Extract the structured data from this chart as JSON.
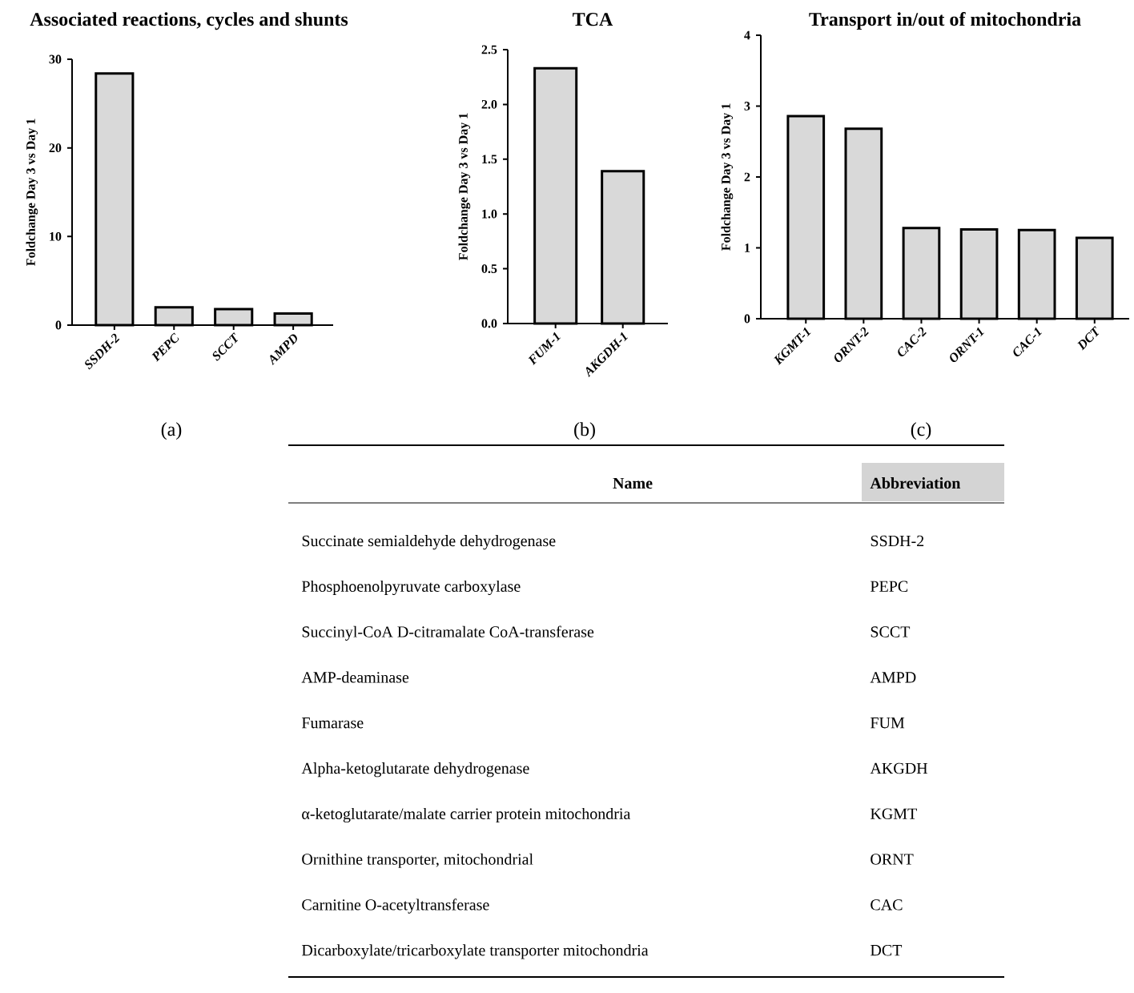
{
  "chart_data": [
    {
      "type": "bar",
      "title": "Associated reactions, cycles and shunts",
      "ylabel": "Foldchange Day 3 vs Day 1",
      "categories": [
        "SSDH-2",
        "PEPC",
        "SCCT",
        "AMPD"
      ],
      "values": [
        28.4,
        2.0,
        1.8,
        1.3
      ],
      "color": "#d9d9d9",
      "ylim": [
        0,
        30
      ],
      "yticks": [
        0,
        10,
        20,
        30
      ],
      "annotations": [
        "(a)"
      ]
    },
    {
      "type": "bar",
      "title": "TCA",
      "ylabel": "Foldchange Day 3 vs Day 1",
      "categories": [
        "FUM-1",
        "AKGDH-1"
      ],
      "values": [
        2.33,
        1.39
      ],
      "color": "#d9d9d9",
      "ylim": [
        0,
        2.5
      ],
      "yticks": [
        {
          "value": 0,
          "label": "0.0"
        },
        {
          "value": 0.5,
          "label": "0.5"
        },
        {
          "value": 1,
          "label": "1.0"
        },
        {
          "value": 1.5,
          "label": "1.5"
        },
        {
          "value": 2,
          "label": "2.0"
        },
        {
          "value": 2.5,
          "label": "2.5"
        }
      ],
      "annotations": [
        "(b)"
      ]
    },
    {
      "type": "bar",
      "title": "Transport in/out of mitochondria",
      "ylabel": "Foldchange Day 3 vs Day 1",
      "categories": [
        "KGMT-1",
        "ORNT-2",
        "CAC-2",
        "ORNT-1",
        "CAC-1",
        "DCT"
      ],
      "values": [
        2.86,
        2.68,
        1.28,
        1.26,
        1.25,
        1.14
      ],
      "color": "#d9d9d9",
      "ylim": [
        0,
        4
      ],
      "yticks": [
        0,
        1,
        2,
        3,
        4
      ],
      "annotations": [
        "(c)"
      ]
    },
    {
      "type": "other",
      "annotations": [
        "Name",
        "Abbreviation",
        "Succinate semialdehyde dehydrogenase",
        "SSDH-2",
        "Phosphoenolpyruvate carboxylase",
        "PEPC",
        "Succinyl-CoA D-citramalate CoA-transferase",
        "SCCT",
        "AMP-deaminase",
        "AMPD",
        "Fumarase",
        "FUM",
        "Alpha-ketoglutarate dehydrogenase",
        "AKGDH",
        "α-ketoglutarate/malate carrier protein mitochondria",
        "KGMT",
        "Ornithine transporter, mitochondrial",
        "ORNT",
        "Carnitine O-acetyltransferase",
        "CAC",
        "Dicarboxylate/tricarboxylate transporter mitochondria",
        "DCT"
      ]
    }
  ]
}
